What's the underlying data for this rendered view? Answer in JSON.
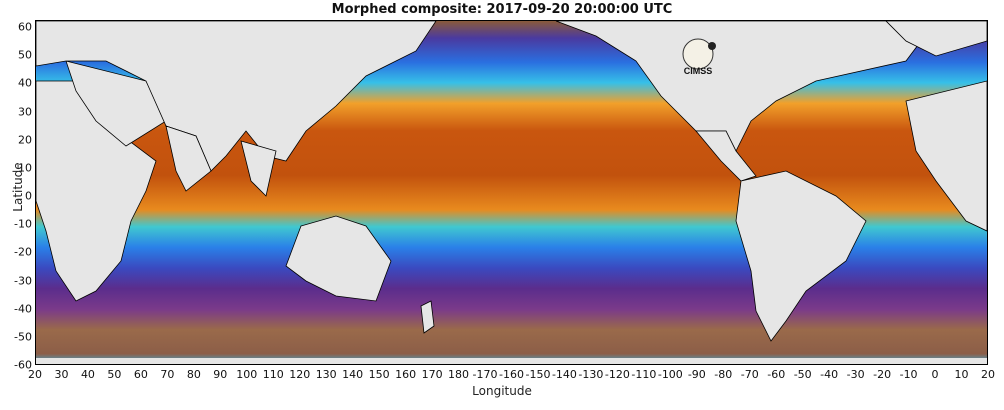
{
  "title": "Morphed composite: 2017-09-20 20:00:00 UTC",
  "axes": {
    "xlabel": "Longitude",
    "ylabel": "Latitude",
    "xticks": [
      "20",
      "30",
      "40",
      "50",
      "60",
      "70",
      "80",
      "90",
      "100",
      "110",
      "120",
      "130",
      "140",
      "150",
      "160",
      "170",
      "180",
      "-170",
      "-160",
      "-150",
      "-140",
      "-130",
      "-120",
      "-110",
      "-100",
      "-90",
      "-80",
      "-70",
      "-60",
      "-50",
      "-40",
      "-30",
      "-20",
      "-10",
      "0",
      "10",
      "20"
    ],
    "yticks": [
      "60",
      "50",
      "40",
      "30",
      "20",
      "10",
      "0",
      "-10",
      "-20",
      "-30",
      "-40",
      "-50",
      "-60"
    ]
  },
  "logo": {
    "text": "CIMSS"
  },
  "colors": {
    "land": "#e6e6e6",
    "moist_high": "#c0530e",
    "moist_mid": "#f5a623",
    "moist_low": "#2aa8e8",
    "dry": "#5b2d8c",
    "very_dry": "#9a6a4a"
  }
}
